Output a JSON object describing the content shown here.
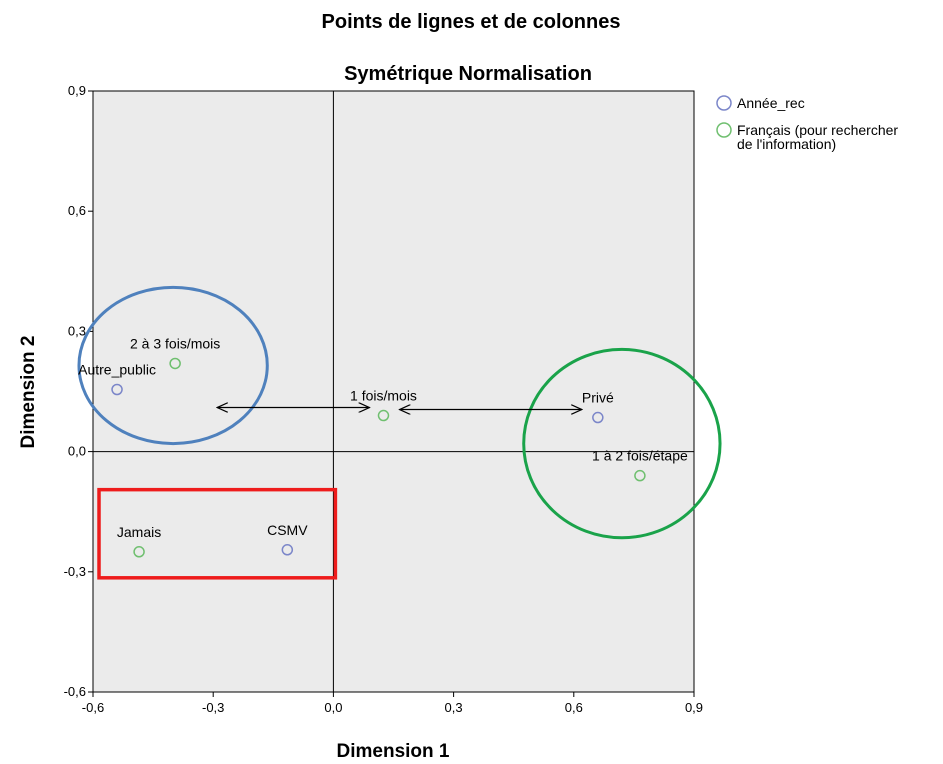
{
  "chart_data": {
    "type": "scatter",
    "title": "Points de lignes et de colonnes",
    "subtitle": "Symétrique Normalisation",
    "xlabel": "Dimension 1",
    "ylabel": "Dimension 2",
    "xlim": [
      -0.6,
      0.9
    ],
    "ylim": [
      -0.6,
      0.9
    ],
    "xticks": [
      -0.6,
      -0.3,
      0.0,
      0.3,
      0.6,
      0.9
    ],
    "yticks": [
      -0.6,
      -0.3,
      0.0,
      0.3,
      0.6,
      0.9
    ],
    "xtick_labels": [
      "-0,6",
      "-0,3",
      "0,0",
      "0,3",
      "0,6",
      "0,9"
    ],
    "ytick_labels": [
      "-0,6",
      "-0,3",
      "0,0",
      "0,3",
      "0,6",
      "0,9"
    ],
    "grid": false,
    "background": "#ebebeb",
    "legend_position": "top-right",
    "series": [
      {
        "name": "Année_rec",
        "color": "#7b86c9",
        "points": [
          {
            "label": "Autre_public",
            "x": -0.54,
            "y": 0.155
          },
          {
            "label": "CSMV",
            "x": -0.115,
            "y": -0.245
          },
          {
            "label": "Privé",
            "x": 0.66,
            "y": 0.085
          }
        ]
      },
      {
        "name": "Français (pour rechercher de l'information)",
        "name_lines": [
          "Français (pour rechercher",
          "de l'information)"
        ],
        "color": "#6fbf6f",
        "points": [
          {
            "label": "2 à 3 fois/mois",
            "x": -0.395,
            "y": 0.22
          },
          {
            "label": "1 fois/mois",
            "x": 0.125,
            "y": 0.09
          },
          {
            "label": "Jamais",
            "x": -0.485,
            "y": -0.25
          },
          {
            "label": "1 à 2 fois/étape",
            "x": 0.765,
            "y": -0.06
          }
        ]
      }
    ],
    "annotations": {
      "ellipses": [
        {
          "color": "#4f81bd",
          "cx": -0.4,
          "cy": 0.215,
          "rx": 0.235,
          "ry": 0.195
        },
        {
          "color": "#1aa34a",
          "cx": 0.72,
          "cy": 0.02,
          "rx": 0.245,
          "ry": 0.235
        }
      ],
      "rectangles": [
        {
          "color": "#ee1c1c",
          "x0": -0.585,
          "y0": -0.315,
          "x1": 0.005,
          "y1": -0.095
        }
      ],
      "arrows": [
        {
          "x0": -0.29,
          "y0": 0.11,
          "x1": 0.09,
          "y1": 0.11,
          "double": true
        },
        {
          "x0": 0.165,
          "y0": 0.105,
          "x1": 0.62,
          "y1": 0.105,
          "double": true
        }
      ]
    }
  }
}
